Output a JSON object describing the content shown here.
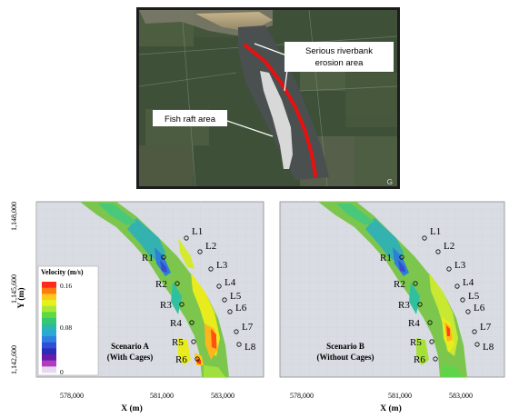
{
  "satellite": {
    "erosion_label": [
      "Serious riverbank",
      "erosion area"
    ],
    "fish_label": "Fish raft area",
    "corner_mark": "G"
  },
  "panel_a": {
    "scenario_title": "Scenario A",
    "scenario_sub": "(With Cages)",
    "y_ticks": [
      "1,148,000",
      "1,145,600",
      "1,142,600"
    ],
    "x_ticks": [
      "578,000",
      "581,000",
      "583,000"
    ],
    "xlabel": "X (m)",
    "ylabel": "Y (m)",
    "legend_title": "Velocity (m/s)",
    "legend_ticks": [
      "0.16",
      "0.08",
      "0"
    ],
    "legend_colors": [
      "#ff2a1a",
      "#ff7a10",
      "#ffc81a",
      "#e8f01c",
      "#a8e83a",
      "#60d840",
      "#36c870",
      "#2ab8a8",
      "#2aa8d8",
      "#2e80e0",
      "#2f4fd8",
      "#2c2ab8",
      "#6a1aa8",
      "#b03cc0",
      "#e8d8f0"
    ]
  },
  "panel_b": {
    "scenario_title": "Scenario B",
    "scenario_sub": "(Without  Cages)",
    "x_ticks": [
      "578,000",
      "581,000",
      "583,000"
    ],
    "xlabel": "X (m)"
  },
  "stations": [
    "L1",
    "L2",
    "L3",
    "L4",
    "L5",
    "L6",
    "L7",
    "L8",
    "R1",
    "R2",
    "R3",
    "R4",
    "R5",
    "R6"
  ]
}
